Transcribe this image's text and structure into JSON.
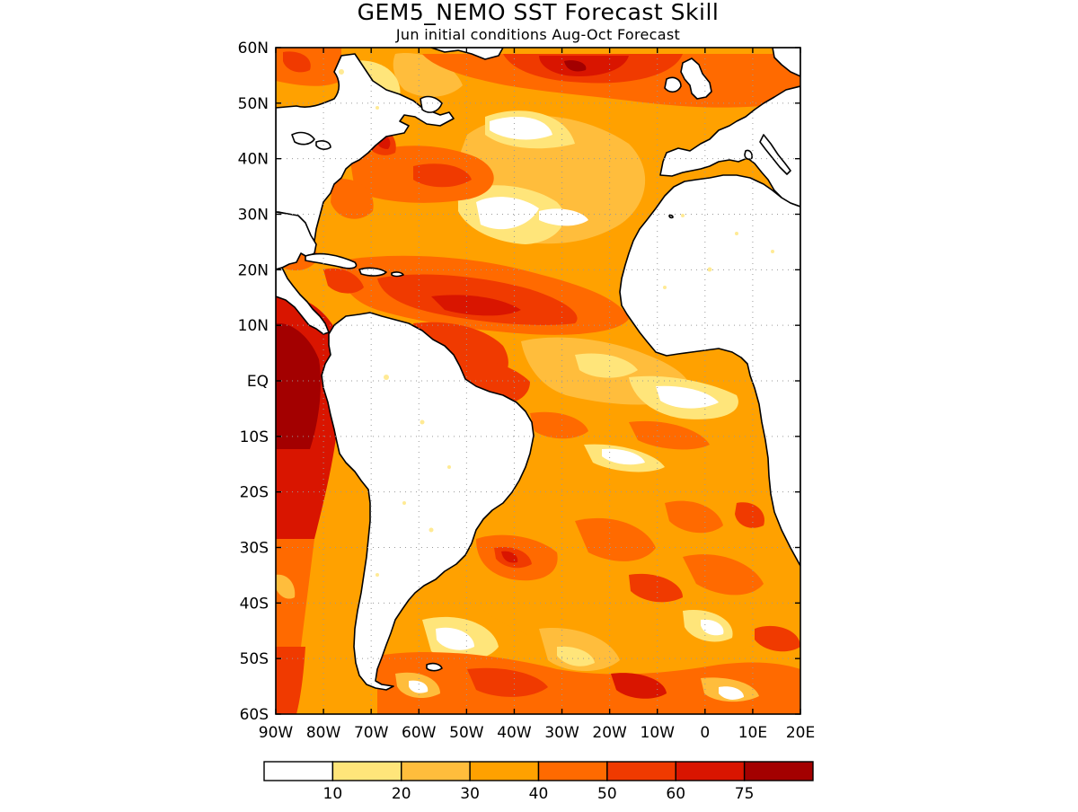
{
  "title": "GEM5_NEMO SST Forecast Skill",
  "subtitle": "Jun initial conditions  Aug-Oct Forecast",
  "map": {
    "region": "Atlantic Ocean",
    "lon_range": [
      -90,
      20
    ],
    "lat_range": [
      -60,
      60
    ],
    "grid": true,
    "lat_ticks": [
      {
        "value": 60,
        "label": "60N"
      },
      {
        "value": 50,
        "label": "50N"
      },
      {
        "value": 40,
        "label": "40N"
      },
      {
        "value": 30,
        "label": "30N"
      },
      {
        "value": 20,
        "label": "20N"
      },
      {
        "value": 10,
        "label": "10N"
      },
      {
        "value": 0,
        "label": "EQ"
      },
      {
        "value": -10,
        "label": "10S"
      },
      {
        "value": -20,
        "label": "20S"
      },
      {
        "value": -30,
        "label": "30S"
      },
      {
        "value": -40,
        "label": "40S"
      },
      {
        "value": -50,
        "label": "50S"
      },
      {
        "value": -60,
        "label": "60S"
      }
    ],
    "lon_ticks": [
      {
        "value": -90,
        "label": "90W"
      },
      {
        "value": -80,
        "label": "80W"
      },
      {
        "value": -70,
        "label": "70W"
      },
      {
        "value": -60,
        "label": "60W"
      },
      {
        "value": -50,
        "label": "50W"
      },
      {
        "value": -40,
        "label": "40W"
      },
      {
        "value": -30,
        "label": "30W"
      },
      {
        "value": -20,
        "label": "20W"
      },
      {
        "value": -10,
        "label": "10W"
      },
      {
        "value": 0,
        "label": "0"
      },
      {
        "value": 10,
        "label": "10E"
      },
      {
        "value": 20,
        "label": "20E"
      }
    ]
  },
  "colorbar": {
    "colors": [
      "#ffffff",
      "#ffe57a",
      "#ffbd3c",
      "#ffa100",
      "#ff6a00",
      "#f03a00",
      "#d91500",
      "#a30000"
    ],
    "labels": [
      "10",
      "20",
      "30",
      "40",
      "50",
      "60",
      "75"
    ]
  },
  "colors": {
    "land": "#ffffff",
    "coast": "#000000",
    "grid": "#9a9a9a"
  }
}
